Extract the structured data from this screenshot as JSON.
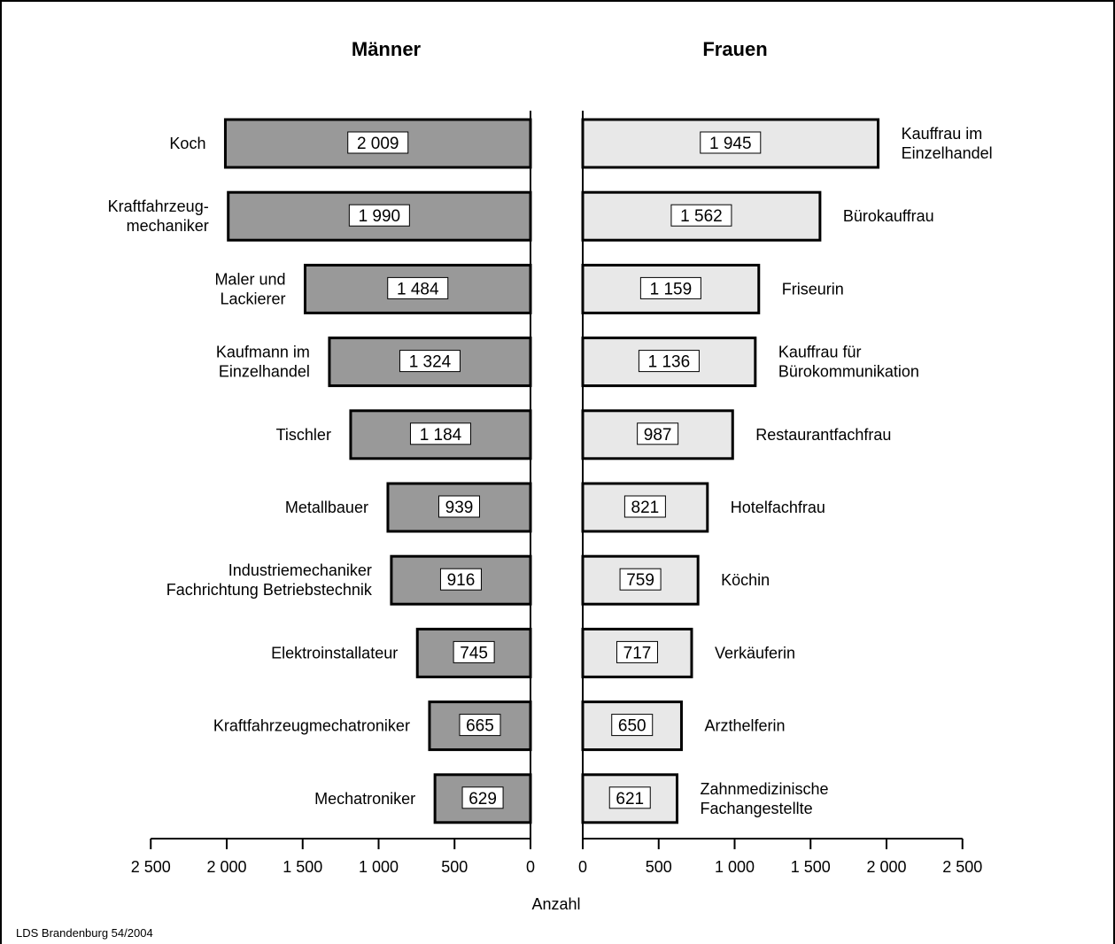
{
  "chart_data": {
    "type": "bar",
    "orientation": "horizontal",
    "layout": "population-pyramid",
    "source": "LDS Brandenburg 54/2004",
    "xlabel": "Anzahl",
    "xlim": [
      0,
      2500
    ],
    "x_ticks": [
      0,
      500,
      1000,
      1500,
      2000,
      2500
    ],
    "x_tick_labels": [
      "0",
      "500",
      "1 000",
      "1 500",
      "2 000",
      "2 500"
    ],
    "colors": {
      "men": "#999999",
      "women": "#e8e8e8",
      "edge": "#000000"
    },
    "panels": [
      {
        "side": "left",
        "title": "Männer",
        "categories": [
          [
            "Koch"
          ],
          [
            "Kraftfahrzeug-",
            "mechaniker"
          ],
          [
            "Maler und",
            "Lackierer"
          ],
          [
            "Kaufmann im",
            "Einzelhandel"
          ],
          [
            "Tischler"
          ],
          [
            "Metallbauer"
          ],
          [
            "Industriemechaniker",
            "Fachrichtung Betriebstechnik"
          ],
          [
            "Elektroinstallateur"
          ],
          [
            "Kraftfahrzeugmechatroniker"
          ],
          [
            "Mechatroniker"
          ]
        ],
        "values": [
          2009,
          1990,
          1484,
          1324,
          1184,
          939,
          916,
          745,
          665,
          629
        ],
        "value_labels": [
          "2 009",
          "1 990",
          "1 484",
          "1 324",
          "1 184",
          "939",
          "916",
          "745",
          "665",
          "629"
        ]
      },
      {
        "side": "right",
        "title": "Frauen",
        "categories": [
          [
            "Kauffrau im",
            "Einzelhandel"
          ],
          [
            "Bürokauffrau"
          ],
          [
            "Friseurin"
          ],
          [
            "Kauffrau für",
            "Bürokommunikation"
          ],
          [
            "Restaurantfachfrau"
          ],
          [
            "Hotelfachfrau"
          ],
          [
            "Köchin"
          ],
          [
            "Verkäuferin"
          ],
          [
            "Arzthelferin"
          ],
          [
            "Zahnmedizinische",
            "Fachangestellte"
          ]
        ],
        "values": [
          1945,
          1562,
          1159,
          1136,
          987,
          821,
          759,
          717,
          650,
          621
        ],
        "value_labels": [
          "1 945",
          "1 562",
          "1 159",
          "1 136",
          "987",
          "821",
          "759",
          "717",
          "650",
          "621"
        ]
      }
    ]
  }
}
